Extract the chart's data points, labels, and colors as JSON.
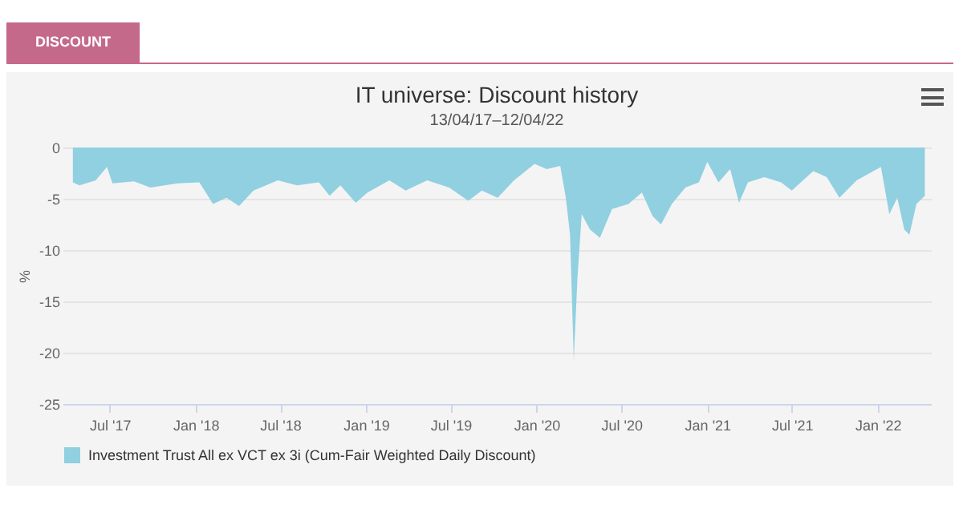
{
  "chart_data": {
    "type": "area",
    "title": "IT universe: Discount history",
    "subtitle": "13/04/17–12/04/22",
    "ylabel": "%",
    "annotations": [
      "DISCOUNT"
    ],
    "x": [
      "2017-04-13",
      "2017-04-27",
      "2017-06-01",
      "2017-06-25",
      "2017-07-07",
      "2017-08-22",
      "2017-09-26",
      "2017-11-23",
      "2018-01-09",
      "2018-02-07",
      "2018-03-08",
      "2018-04-04",
      "2018-05-05",
      "2018-06-26",
      "2018-08-06",
      "2018-09-22",
      "2018-10-15",
      "2018-11-07",
      "2018-12-10",
      "2019-01-04",
      "2019-02-20",
      "2019-03-27",
      "2019-05-12",
      "2019-06-28",
      "2019-08-08",
      "2019-09-06",
      "2019-10-10",
      "2019-11-14",
      "2019-12-28",
      "2020-01-23",
      "2020-02-21",
      "2020-03-04",
      "2020-03-13",
      "2020-03-21",
      "2020-03-29",
      "2020-04-07",
      "2020-04-25",
      "2020-05-16",
      "2020-06-11",
      "2020-07-16",
      "2020-08-14",
      "2020-09-06",
      "2020-09-24",
      "2020-10-17",
      "2020-11-15",
      "2020-12-14",
      "2021-01-01",
      "2021-01-25",
      "2021-02-19",
      "2021-03-10",
      "2021-03-29",
      "2021-05-03",
      "2021-06-08",
      "2021-07-01",
      "2021-08-16",
      "2021-09-14",
      "2021-10-11",
      "2021-11-17",
      "2022-01-08",
      "2022-01-26",
      "2022-02-12",
      "2022-02-27",
      "2022-03-10",
      "2022-03-25",
      "2022-04-12"
    ],
    "series": [
      {
        "name": "Investment Trust All ex VCT ex 3i (Cum-Fair Weighted Daily Discount)",
        "color": "#90d0e0",
        "values": [
          -3.4,
          -3.7,
          -3.2,
          -1.9,
          -3.5,
          -3.3,
          -3.9,
          -3.5,
          -3.4,
          -5.5,
          -4.9,
          -5.7,
          -4.2,
          -3.2,
          -3.7,
          -3.4,
          -4.7,
          -3.7,
          -5.4,
          -4.4,
          -3.2,
          -4.2,
          -3.2,
          -3.9,
          -5.2,
          -4.2,
          -4.9,
          -3.2,
          -1.6,
          -2.1,
          -1.8,
          -4.9,
          -8.5,
          -20.7,
          -12.6,
          -6.5,
          -8.0,
          -8.8,
          -6.0,
          -5.5,
          -4.4,
          -6.7,
          -7.5,
          -5.5,
          -3.9,
          -3.4,
          -1.4,
          -3.4,
          -2.1,
          -5.4,
          -3.4,
          -2.9,
          -3.4,
          -4.2,
          -2.3,
          -2.9,
          -4.9,
          -3.2,
          -1.9,
          -6.5,
          -4.9,
          -8.0,
          -8.5,
          -5.5,
          -4.7
        ]
      }
    ],
    "xlim": [
      "2017-03-22",
      "2022-04-25"
    ],
    "xticks": [
      {
        "value": "2017-07-01",
        "label": "Jul '17"
      },
      {
        "value": "2018-01-01",
        "label": "Jan '18"
      },
      {
        "value": "2018-07-01",
        "label": "Jul '18"
      },
      {
        "value": "2019-01-01",
        "label": "Jan '19"
      },
      {
        "value": "2019-07-01",
        "label": "Jul '19"
      },
      {
        "value": "2020-01-01",
        "label": "Jan '20"
      },
      {
        "value": "2020-07-01",
        "label": "Jul '20"
      },
      {
        "value": "2021-01-01",
        "label": "Jan '21"
      },
      {
        "value": "2021-07-01",
        "label": "Jul '21"
      },
      {
        "value": "2022-01-01",
        "label": "Jan '22"
      }
    ],
    "ylim": [
      -25,
      0
    ],
    "yticks": [
      0,
      -5,
      -10,
      -15,
      -20,
      -25
    ],
    "grid": "y",
    "legend": "bottom"
  }
}
